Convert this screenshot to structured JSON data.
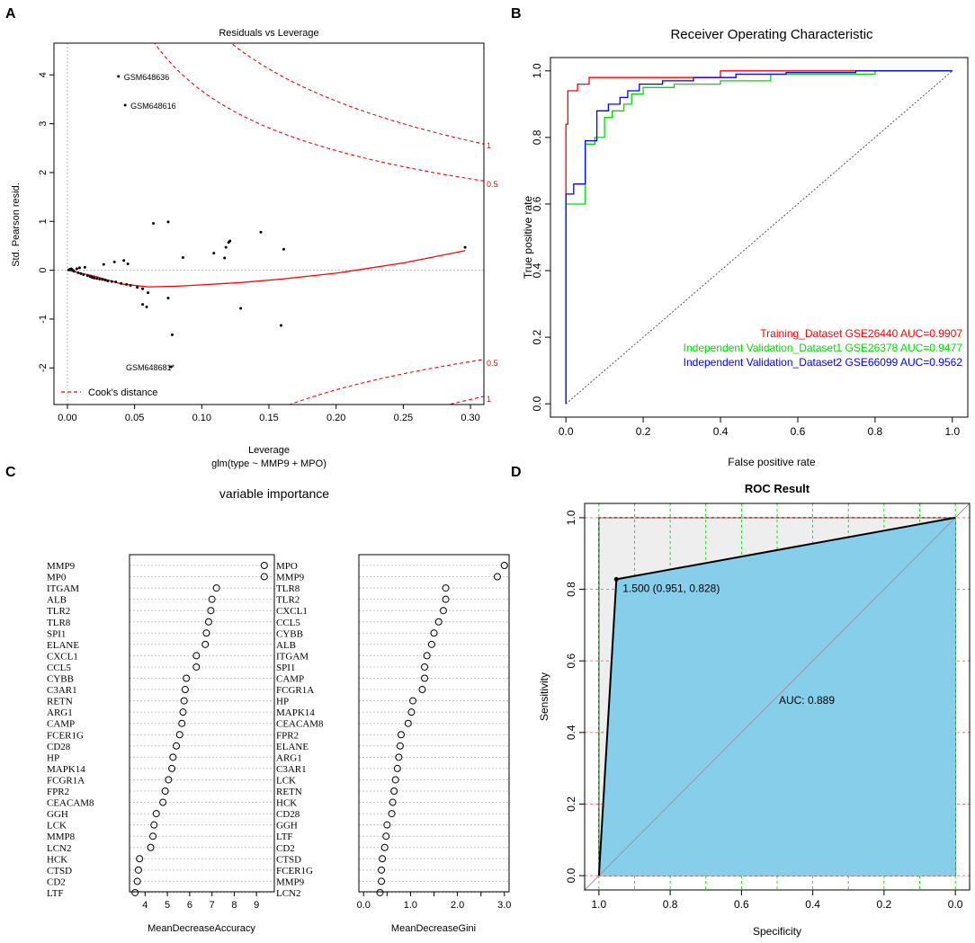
{
  "colors": {
    "red": "#ff0000",
    "green": "#00dd00",
    "blue": "#0000ff",
    "roc_fill": "#87ceeb",
    "roc_bg": "#eeeeee",
    "grid_green": "#00cc00",
    "grid_red": "#ff6666"
  },
  "panels": {
    "A": {
      "letter": "A",
      "title": "Residuals vs Leverage",
      "xlabel": "Leverage",
      "xsub": "glm(type ~ MMP9 + MPO)",
      "ylabel": "Std. Pearson resid.",
      "legend": "Cook's distance",
      "cook_labels": [
        "1",
        "0.5",
        "0.5",
        "1"
      ]
    },
    "B": {
      "letter": "B",
      "title": "Receiver Operating Characteristic",
      "xlabel": "False positive rate",
      "ylabel": "True positive rate"
    },
    "C": {
      "letter": "C",
      "title": "variable importance",
      "xlabel_left": "MeanDecreaseAccuracy",
      "xlabel_right": "MeanDecreaseGini"
    },
    "D": {
      "letter": "D",
      "title": "ROC Result",
      "xlabel": "Specificity",
      "ylabel": "Sensitivity"
    }
  },
  "chart_data": [
    {
      "type": "scatter",
      "title": "Residuals vs Leverage",
      "xlabel": "Leverage",
      "ylabel": "Std. Pearson resid.",
      "xlim": [
        -0.01,
        0.31
      ],
      "ylim": [
        -2.75,
        4.65
      ],
      "xticks": [
        0.0,
        0.05,
        0.1,
        0.15,
        0.2,
        0.25,
        0.3
      ],
      "xtick_labels": [
        "0.00",
        "0.05",
        "0.10",
        "0.15",
        "0.20",
        "0.25",
        "0.30"
      ],
      "yticks": [
        -2,
        -1,
        0,
        1,
        2,
        3,
        4
      ],
      "points": [
        {
          "x": 0.038,
          "y": 3.97
        },
        {
          "x": 0.043,
          "y": 3.38
        },
        {
          "x": 0.077,
          "y": -1.98
        },
        {
          "x": 0.001,
          "y": 0.01
        },
        {
          "x": 0.002,
          "y": 0.02
        },
        {
          "x": 0.003,
          "y": 0.03
        },
        {
          "x": 0.004,
          "y": 0.0
        },
        {
          "x": 0.005,
          "y": -0.02
        },
        {
          "x": 0.007,
          "y": 0.03
        },
        {
          "x": 0.008,
          "y": -0.05
        },
        {
          "x": 0.009,
          "y": 0.05
        },
        {
          "x": 0.01,
          "y": -0.07
        },
        {
          "x": 0.012,
          "y": -0.09
        },
        {
          "x": 0.013,
          "y": 0.06
        },
        {
          "x": 0.015,
          "y": -0.11
        },
        {
          "x": 0.017,
          "y": -0.13
        },
        {
          "x": 0.018,
          "y": -0.14
        },
        {
          "x": 0.019,
          "y": -0.15
        },
        {
          "x": 0.02,
          "y": -0.16
        },
        {
          "x": 0.022,
          "y": -0.17
        },
        {
          "x": 0.024,
          "y": -0.18
        },
        {
          "x": 0.026,
          "y": -0.19
        },
        {
          "x": 0.027,
          "y": 0.12
        },
        {
          "x": 0.028,
          "y": -0.2
        },
        {
          "x": 0.03,
          "y": -0.22
        },
        {
          "x": 0.033,
          "y": -0.23
        },
        {
          "x": 0.035,
          "y": 0.17
        },
        {
          "x": 0.036,
          "y": -0.24
        },
        {
          "x": 0.04,
          "y": -0.27
        },
        {
          "x": 0.042,
          "y": 0.2
        },
        {
          "x": 0.044,
          "y": -0.29
        },
        {
          "x": 0.045,
          "y": 0.13
        },
        {
          "x": 0.047,
          "y": -0.31
        },
        {
          "x": 0.052,
          "y": -0.35
        },
        {
          "x": 0.056,
          "y": -0.38
        },
        {
          "x": 0.056,
          "y": -0.7
        },
        {
          "x": 0.059,
          "y": -0.75
        },
        {
          "x": 0.06,
          "y": -0.46
        },
        {
          "x": 0.064,
          "y": 0.96
        },
        {
          "x": 0.075,
          "y": 0.99
        },
        {
          "x": 0.075,
          "y": -0.57
        },
        {
          "x": 0.078,
          "y": -1.32
        },
        {
          "x": 0.086,
          "y": 0.26
        },
        {
          "x": 0.109,
          "y": 0.35
        },
        {
          "x": 0.117,
          "y": 0.25
        },
        {
          "x": 0.118,
          "y": 0.47
        },
        {
          "x": 0.12,
          "y": 0.57
        },
        {
          "x": 0.121,
          "y": 0.6
        },
        {
          "x": 0.129,
          "y": -0.78
        },
        {
          "x": 0.144,
          "y": 0.78
        },
        {
          "x": 0.159,
          "y": -1.13
        },
        {
          "x": 0.161,
          "y": 0.43
        },
        {
          "x": 0.296,
          "y": 0.47
        }
      ],
      "point_labels": [
        {
          "text": "GSM648636",
          "x": 0.038,
          "y": 3.97
        },
        {
          "text": "GSM648616",
          "x": 0.043,
          "y": 3.38
        },
        {
          "text": "GSM648681*",
          "x": 0.077,
          "y": -1.98
        }
      ],
      "smooth": {
        "x": [
          0.0,
          0.02,
          0.04,
          0.06,
          0.08,
          0.1,
          0.13,
          0.16,
          0.2,
          0.25,
          0.296
        ],
        "y": [
          0.0,
          -0.12,
          -0.28,
          -0.34,
          -0.33,
          -0.3,
          -0.25,
          -0.18,
          -0.06,
          0.15,
          0.4
        ]
      },
      "legend": [
        "Cook's distance"
      ]
    },
    {
      "type": "line",
      "title": "Receiver Operating Characteristic",
      "xlabel": "False positive rate",
      "ylabel": "True positive rate",
      "xlim": [
        -0.04,
        1.04
      ],
      "ylim": [
        -0.04,
        1.04
      ],
      "ticks": [
        0.0,
        0.2,
        0.4,
        0.6,
        0.8,
        1.0
      ],
      "tick_labels": [
        "0.0",
        "0.2",
        "0.4",
        "0.6",
        "0.8",
        "1.0"
      ],
      "series": [
        {
          "name": "Training_Dataset GSE26440 AUC=0.9907",
          "color": "#ff0000",
          "x": [
            0,
            0,
            0.005,
            0.005,
            0.03,
            0.03,
            0.06,
            0.06,
            0.4,
            0.4,
            0.62,
            1.0
          ],
          "y": [
            0,
            0.84,
            0.84,
            0.94,
            0.94,
            0.96,
            0.96,
            0.98,
            0.98,
            1.0,
            1.0,
            1.0
          ]
        },
        {
          "name": "Independent Validation_Dataset1 GSE26378 AUC=0.9477",
          "color": "#00dd00",
          "x": [
            0,
            0,
            0.05,
            0.05,
            0.075,
            0.075,
            0.1,
            0.1,
            0.12,
            0.12,
            0.15,
            0.15,
            0.17,
            0.17,
            0.2,
            0.2,
            0.28,
            0.28,
            0.4,
            0.4,
            0.53,
            0.53,
            0.8,
            0.8,
            1.0
          ],
          "y": [
            0,
            0.6,
            0.6,
            0.78,
            0.78,
            0.8,
            0.8,
            0.86,
            0.86,
            0.88,
            0.88,
            0.9,
            0.9,
            0.93,
            0.93,
            0.95,
            0.95,
            0.96,
            0.96,
            0.97,
            0.97,
            0.99,
            0.99,
            1.0,
            1.0
          ]
        },
        {
          "name": "Independent Validation_Dataset2 GSE66099 AUC=0.9562",
          "color": "#0000ff",
          "x": [
            0,
            0,
            0.02,
            0.02,
            0.05,
            0.05,
            0.08,
            0.08,
            0.11,
            0.11,
            0.14,
            0.14,
            0.16,
            0.16,
            0.19,
            0.19,
            0.25,
            0.25,
            0.33,
            0.33,
            0.44,
            0.44,
            0.57,
            0.57,
            0.75,
            0.75,
            1.0
          ],
          "y": [
            0,
            0.63,
            0.63,
            0.66,
            0.66,
            0.79,
            0.79,
            0.88,
            0.88,
            0.9,
            0.9,
            0.92,
            0.92,
            0.94,
            0.94,
            0.96,
            0.96,
            0.97,
            0.97,
            0.98,
            0.98,
            0.99,
            0.99,
            0.995,
            0.995,
            1.0,
            1.0
          ]
        }
      ]
    },
    {
      "type": "dotplot",
      "title": "variable importance",
      "panels": [
        {
          "xlabel": "MeanDecreaseAccuracy",
          "xlim": [
            3.3,
            9.8
          ],
          "ticks": [
            4,
            5,
            6,
            7,
            8,
            9
          ],
          "labels": [
            "MMP9",
            "MP0",
            "ITGAM",
            "ALB",
            "TLR2",
            "TLR8",
            "SPI1",
            "ELANE",
            "CXCL1",
            "CCL5",
            "CYBB",
            "C3AR1",
            "RETN",
            "ARG1",
            "CAMP",
            "FCER1G",
            "CD28",
            "HP",
            "MAPK14",
            "FCGR1A",
            "FPR2",
            "CEACAM8",
            "GGH",
            "LCK",
            "MMP8",
            "LCN2",
            "HCK",
            "CTSD",
            "CD2",
            "LTF"
          ],
          "values": [
            9.35,
            9.35,
            7.2,
            7.0,
            6.95,
            6.85,
            6.75,
            6.7,
            6.3,
            6.3,
            5.85,
            5.8,
            5.75,
            5.7,
            5.65,
            5.55,
            5.4,
            5.25,
            5.2,
            5.05,
            4.9,
            4.8,
            4.5,
            4.4,
            4.35,
            4.25,
            3.75,
            3.7,
            3.65,
            3.55
          ]
        },
        {
          "xlabel": "MeanDecreaseGini",
          "xlim": [
            -0.1,
            3.1
          ],
          "ticks": [
            0.0,
            0.5,
            1.0,
            1.5,
            2.0,
            2.5,
            3.0
          ],
          "tick_labels": [
            "0.0",
            "",
            "1.0",
            "",
            "2.0",
            "",
            "3.0"
          ],
          "labels": [
            "MPO",
            "MMP9",
            "TLR8",
            "TLR2",
            "CXCL1",
            "CCL5",
            "CYBB",
            "ALB",
            "ITGAM",
            "SPI1",
            "CAMP",
            "FCGR1A",
            "HP",
            "MAPK14",
            "CEACAM8",
            "FPR2",
            "ELANE",
            "ARG1",
            "C3AR1",
            "LCK",
            "RETN",
            "HCK",
            "CD28",
            "GGH",
            "LTF",
            "CD2",
            "CTSD",
            "FCER1G",
            "MMP9",
            "LCN2"
          ],
          "values": [
            3.0,
            2.85,
            1.75,
            1.75,
            1.7,
            1.6,
            1.5,
            1.45,
            1.35,
            1.3,
            1.3,
            1.25,
            1.05,
            1.02,
            0.95,
            0.8,
            0.78,
            0.75,
            0.72,
            0.68,
            0.65,
            0.62,
            0.6,
            0.5,
            0.48,
            0.45,
            0.4,
            0.38,
            0.38,
            0.35
          ]
        }
      ]
    },
    {
      "type": "area",
      "title": "ROC Result",
      "xlabel": "Specificity",
      "ylabel": "Sensitivity",
      "xlim": [
        1.04,
        -0.04
      ],
      "ylim": [
        -0.04,
        1.04
      ],
      "xticks": [
        1.0,
        0.8,
        0.6,
        0.4,
        0.2,
        0.0
      ],
      "yticks": [
        0.0,
        0.2,
        0.4,
        0.6,
        0.8,
        1.0
      ],
      "tick_labels_x": [
        "1.0",
        "0.8",
        "0.6",
        "0.4",
        "0.2",
        "0.0"
      ],
      "tick_labels_y": [
        "0.0",
        "0.2",
        "0.4",
        "0.6",
        "0.8",
        "1.0"
      ],
      "curve": {
        "specificity": [
          1.0,
          0.951,
          0.0
        ],
        "sensitivity": [
          0.0,
          0.828,
          1.0
        ]
      },
      "threshold_label": "1.500 (0.951, 0.828)",
      "auc_label": "AUC: 0.889"
    }
  ]
}
